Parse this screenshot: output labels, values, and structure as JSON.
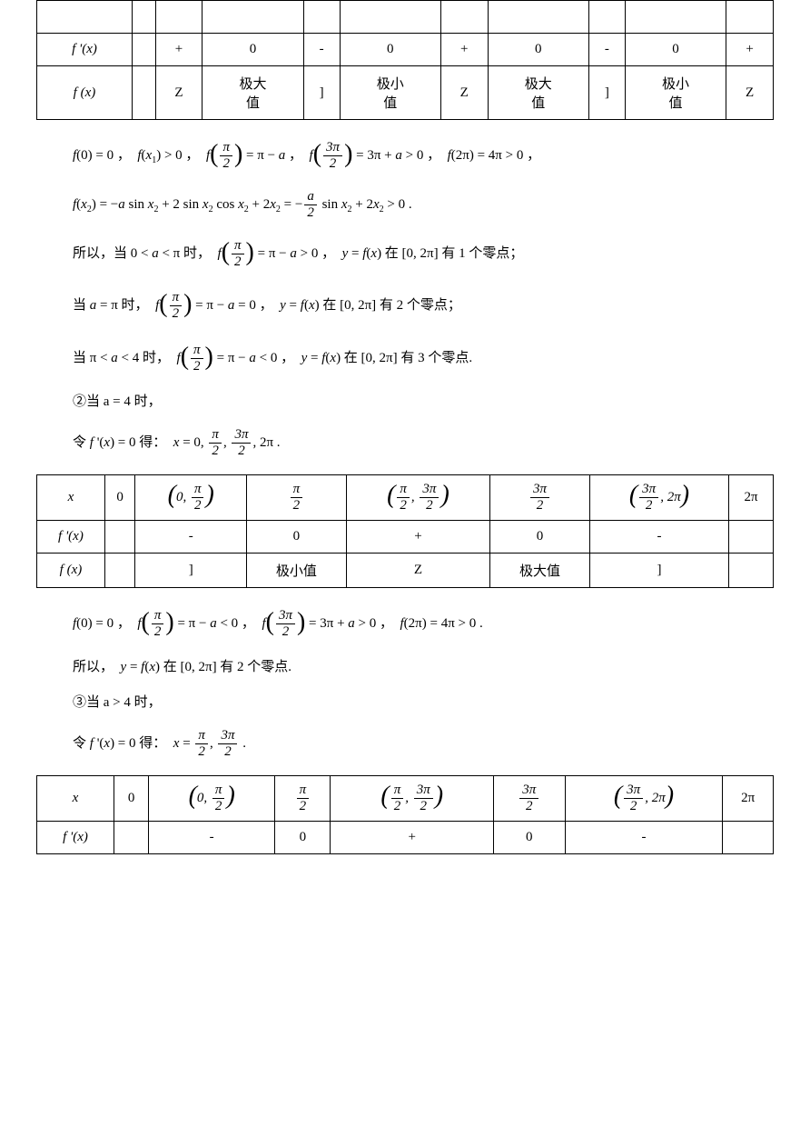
{
  "table1": {
    "col_count": 11,
    "rows": [
      {
        "label": "",
        "cells": [
          "",
          "",
          "",
          "",
          "",
          "",
          "",
          "",
          "",
          ""
        ]
      },
      {
        "label": "f '(x)",
        "cells": [
          "",
          "+",
          "0",
          "-",
          "0",
          "+",
          "0",
          "-",
          "0",
          "+"
        ],
        "label_italic": true
      },
      {
        "label": "f (x)",
        "cells": [
          "",
          "Z",
          "极大\n值",
          "]",
          "极小\n值",
          "Z",
          "极大\n值",
          "]",
          "极小\n值",
          "Z"
        ],
        "label_italic": true
      }
    ]
  },
  "para1": "f(0) = 0 ，  f(x₁) > 0 ，  f(π/2) = π − a ，  f(3π/2) = 3π + a > 0 ，  f(2π) = 4π > 0 ，",
  "para2": "f(x₂) = −a sin x₂ + 2 sin x₂ cos x₂ + 2x₂ = −(a/2) sin x₂ + 2x₂ > 0 .",
  "para3": "所以，当 0 < a < π 时，  f(π/2) = π − a > 0 ，  y = f(x) 在 [0, 2π] 有 1 个零点；",
  "para4": "当 a = π 时，  f(π/2) = π − a = 0 ，  y = f(x) 在 [0, 2π] 有 2 个零点；",
  "para5": "当 π < a < 4 时，  f(π/2) = π − a < 0 ，  y = f(x) 在 [0, 2π] 有 3 个零点.",
  "para6": "②当 a = 4 时，",
  "para7": "令 f '(x) = 0 得：  x = 0, π/2, 3π/2, 2π .",
  "table2": {
    "headers": [
      "x",
      "0",
      "(0, π/2)",
      "π/2",
      "(π/2, 3π/2)",
      "3π/2",
      "(3π/2, 2π)",
      "2π"
    ],
    "rows": [
      {
        "label": "f '(x)",
        "cells": [
          "",
          "-",
          "0",
          "+",
          "0",
          "-",
          ""
        ]
      },
      {
        "label": "f (x)",
        "cells": [
          "",
          "]",
          "极小值",
          "Z",
          "极大值",
          "]",
          ""
        ]
      }
    ]
  },
  "para8": "f(0) = 0 ，  f(π/2) = π − a < 0 ，  f(3π/2) = 3π + a > 0 ，  f(2π) = 4π > 0 .",
  "para9": "所以，  y = f(x) 在 [0, 2π] 有 2 个零点.",
  "para10": "③当 a > 4 时，",
  "para11": "令 f '(x) = 0 得：  x = π/2, 3π/2 .",
  "table3": {
    "headers": [
      "x",
      "0",
      "(0, π/2)",
      "π/2",
      "(π/2, 3π/2)",
      "3π/2",
      "(3π/2, 2π)",
      "2π"
    ],
    "rows": [
      {
        "label": "f '(x)",
        "cells": [
          "",
          "-",
          "0",
          "+",
          "0",
          "-",
          ""
        ]
      }
    ]
  },
  "styles": {
    "bg": "#ffffff",
    "fg": "#000000",
    "border": "#000000",
    "font_body": 15
  }
}
